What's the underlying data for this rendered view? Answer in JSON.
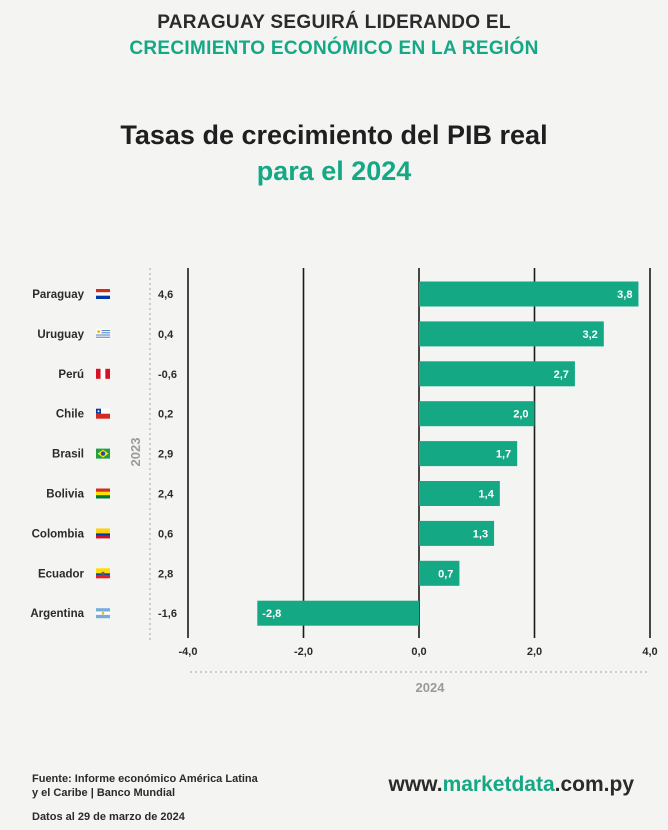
{
  "header": {
    "line1": "PARAGUAY SEGUIRÁ LIDERANDO EL",
    "line2": "CRECIMIENTO ECONÓMICO EN LA REGIÓN"
  },
  "title": {
    "line1": "Tasas de crecimiento del PIB real",
    "line2": "para el 2024"
  },
  "colors": {
    "accent": "#15a884",
    "bar": "#15a884",
    "text": "#2b2b2b",
    "axis_label": "#9a9a9a"
  },
  "chart_data": {
    "type": "bar",
    "orientation": "horizontal",
    "categories": [
      "Paraguay",
      "Uruguay",
      "Perú",
      "Chile",
      "Brasil",
      "Bolivia",
      "Colombia",
      "Ecuador",
      "Argentina"
    ],
    "flags": [
      "paraguay-flag-icon",
      "uruguay-flag-icon",
      "peru-flag-icon",
      "chile-flag-icon",
      "brazil-flag-icon",
      "bolivia-flag-icon",
      "colombia-flag-icon",
      "ecuador-flag-icon",
      "argentina-flag-icon"
    ],
    "series": [
      {
        "name": "2024",
        "values": [
          3.8,
          3.2,
          2.7,
          2.0,
          1.7,
          1.4,
          1.3,
          0.7,
          -2.8
        ],
        "labels": [
          "3,8",
          "3,2",
          "2,7",
          "2,0",
          "1,7",
          "1,4",
          "1,3",
          "0,7",
          "-2,8"
        ]
      },
      {
        "name": "2023",
        "values": [
          4.6,
          0.4,
          -0.6,
          0.2,
          2.9,
          2.4,
          0.6,
          2.8,
          -1.6
        ],
        "labels": [
          "4,6",
          "0,4",
          "-0,6",
          "0,2",
          "2,9",
          "2,4",
          "0,6",
          "2,8",
          "-1,6"
        ]
      }
    ],
    "xlim": [
      -4,
      4
    ],
    "xticks": [
      -4,
      -2,
      0,
      2,
      4
    ],
    "xtick_labels": [
      "-4,0",
      "-2,0",
      "0,0",
      "2,0",
      "4,0"
    ],
    "xlabel": "2024",
    "column_label_2023": "2023",
    "grid": true
  },
  "footer": {
    "source_line1": "Fuente: Informe económico América Latina",
    "source_line2": "y el Caribe | Banco Mundial",
    "date": "Datos al 29 de marzo de 2024",
    "brand_prefix": "www.",
    "brand_accent": "marketdata",
    "brand_suffix": ".com.py"
  }
}
